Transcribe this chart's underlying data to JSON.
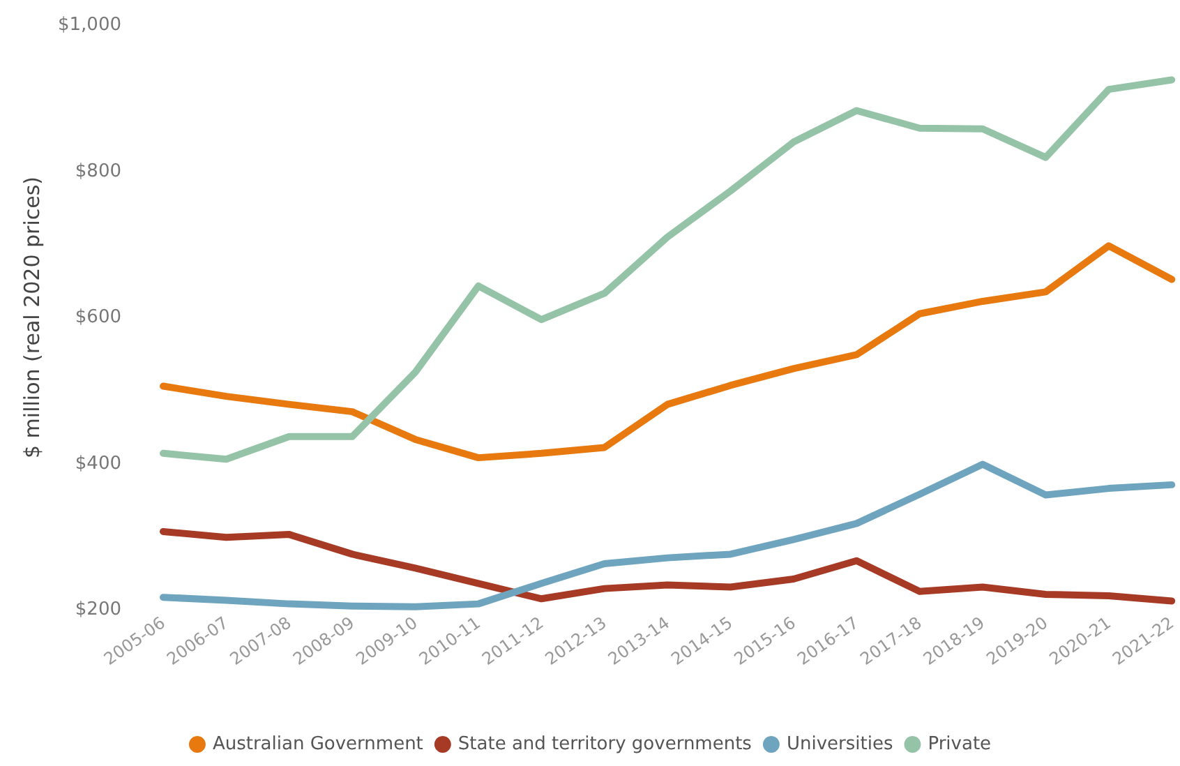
{
  "chart_data": {
    "type": "line",
    "ylabel": "$ million (real 2020 prices)",
    "categories": [
      "2005-06",
      "2006-07",
      "2007-08",
      "2008-09",
      "2009-10",
      "2010-11",
      "2011-12",
      "2012-13",
      "2013-14",
      "2014-15",
      "2015-16",
      "2016-17",
      "2017-18",
      "2018-19",
      "2019-20",
      "2020-21",
      "2021-22"
    ],
    "series": [
      {
        "name": "Australian Government",
        "color": "#e8790e",
        "values": [
          506,
          492,
          481,
          471,
          433,
          408,
          414,
          422,
          481,
          507,
          530,
          549,
          605,
          622,
          635,
          698,
          652
        ]
      },
      {
        "name": "State and territory governments",
        "color": "#a63a25",
        "values": [
          307,
          299,
          303,
          276,
          257,
          236,
          215,
          229,
          234,
          231,
          242,
          267,
          225,
          231,
          221,
          219,
          212
        ]
      },
      {
        "name": "Universities",
        "color": "#6fa4bf",
        "values": [
          217,
          213,
          208,
          205,
          204,
          208,
          236,
          263,
          271,
          276,
          296,
          318,
          358,
          399,
          357,
          366,
          371
        ]
      },
      {
        "name": "Private",
        "color": "#95c3a8",
        "values": [
          414,
          406,
          437,
          437,
          525,
          643,
          597,
          633,
          710,
          773,
          840,
          883,
          859,
          858,
          819,
          912,
          925
        ]
      }
    ],
    "ylim": [
      200,
      1000
    ],
    "yticks": [
      {
        "value": 200,
        "label": "$200"
      },
      {
        "value": 400,
        "label": "$400"
      },
      {
        "value": 600,
        "label": "$600"
      },
      {
        "value": 800,
        "label": "$800"
      },
      {
        "value": 1000,
        "label": "$1,000"
      }
    ],
    "grid": false,
    "legend": "bottom",
    "marker": "none",
    "line_style": "solid"
  }
}
